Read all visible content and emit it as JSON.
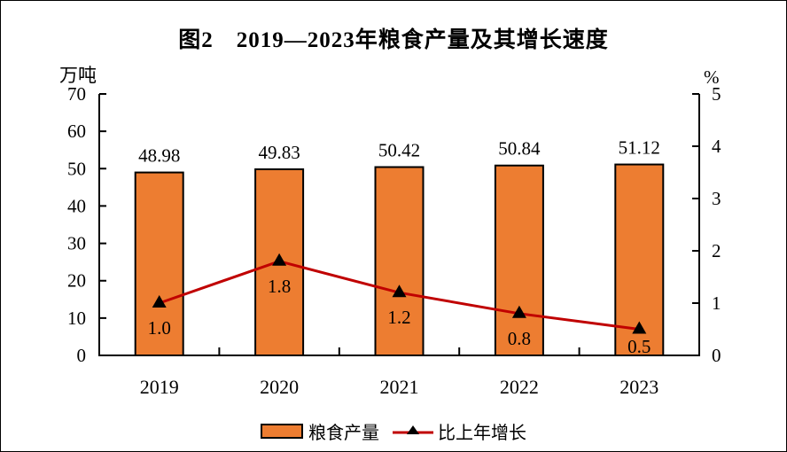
{
  "figure": {
    "title": "图2　2019—2023年粮食产量及其增长速度",
    "left_axis_unit": "万吨",
    "right_axis_unit": "%"
  },
  "legend": {
    "bar_label": "粮食产量",
    "line_label": "比上年增长"
  },
  "colors": {
    "bar_fill": "#ED7D31",
    "bar_border": "#000000",
    "line": "#C00000",
    "marker": "#000000",
    "text": "#000000"
  },
  "chart_data": {
    "type": "bar",
    "subtype": "bar-line-combo",
    "title": "图2　2019—2023年粮食产量及其增长速度",
    "categories": [
      "2019",
      "2020",
      "2021",
      "2022",
      "2023"
    ],
    "series": [
      {
        "name": "粮食产量",
        "type": "bar",
        "axis": "left",
        "values": [
          48.98,
          49.83,
          50.42,
          50.84,
          51.12
        ],
        "labels": [
          "48.98",
          "49.83",
          "50.42",
          "50.84",
          "51.12"
        ]
      },
      {
        "name": "比上年增长",
        "type": "line",
        "axis": "right",
        "values": [
          1.0,
          1.8,
          1.2,
          0.8,
          0.5
        ],
        "labels": [
          "1.0",
          "1.8",
          "1.2",
          "0.8",
          "0.5"
        ]
      }
    ],
    "left_axis": {
      "label": "万吨",
      "min": 0,
      "max": 70,
      "ticks": [
        0,
        10,
        20,
        30,
        40,
        50,
        60,
        70
      ]
    },
    "right_axis": {
      "label": "%",
      "min": 0,
      "max": 5,
      "ticks": [
        0,
        1,
        2,
        3,
        4,
        5
      ]
    },
    "grid": false,
    "legend_position": "bottom"
  }
}
